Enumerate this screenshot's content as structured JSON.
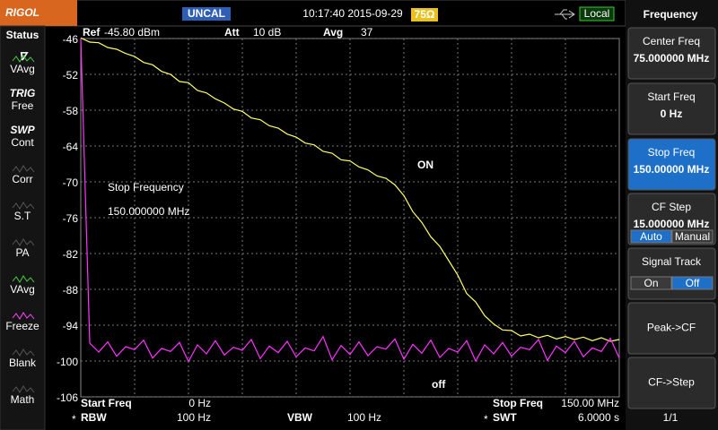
{
  "header": {
    "logo": "RIGOL",
    "uncal": "UNCAL",
    "datetime": "10:17:40 2015-09-29",
    "impedance": "75Ω",
    "remote": "Local"
  },
  "status": {
    "title": "Status",
    "items": [
      {
        "top": "∇",
        "label": "VAvg"
      },
      {
        "top": "TRIG",
        "label": "Free"
      },
      {
        "top": "SWP",
        "label": "Cont"
      },
      {
        "label": "Corr"
      },
      {
        "label": "S.T"
      },
      {
        "label": "PA"
      },
      {
        "label": "VAvg"
      },
      {
        "label": "Freeze"
      },
      {
        "label": "Blank"
      },
      {
        "label": "Math"
      }
    ]
  },
  "menu": {
    "title": "Frequency",
    "buttons": [
      {
        "label": "Center Freq",
        "value": "75.000000 MHz"
      },
      {
        "label": "Start Freq",
        "value": "0 Hz"
      },
      {
        "label": "Stop Freq",
        "value": "150.00000 MHz",
        "active": true
      },
      {
        "label": "CF Step",
        "value": "15.000000 MHz",
        "options": [
          "Auto",
          "Manual"
        ],
        "selected": 0
      },
      {
        "label": "Signal Track",
        "options": [
          "On",
          "Off"
        ],
        "selected": 1
      },
      {
        "label": "Peak->CF"
      },
      {
        "label": "CF->Step"
      }
    ],
    "page": "1/1"
  },
  "chart_data": {
    "type": "line",
    "info": [
      {
        "label": "Ref",
        "value": "-45.80 dBm"
      },
      {
        "label": "Att",
        "value": "10 dB"
      },
      {
        "label": "Avg",
        "value": "37"
      }
    ],
    "footer": [
      {
        "label": "Start Freq",
        "value": "0 Hz"
      },
      {
        "label": "Stop Freq",
        "value": "150.00 MHz"
      },
      {
        "mark": "*",
        "label": "RBW",
        "value": "100 Hz"
      },
      {
        "label": "VBW",
        "value": "100 Hz"
      },
      {
        "mark": "*",
        "label": "SWT",
        "value": "6.0000 s"
      }
    ],
    "annotation": [
      "Stop Frequency",
      "150.000000 MHz"
    ],
    "xlim": [
      0,
      150
    ],
    "ylim": [
      -106,
      -46
    ],
    "yticks": [
      -46,
      -52,
      -58,
      -64,
      -70,
      -76,
      -82,
      -88,
      -94,
      -100,
      -106
    ],
    "grid": true,
    "x": [
      0,
      2.5,
      5,
      7.5,
      10,
      12.5,
      15,
      17.5,
      20,
      22.5,
      25,
      27.5,
      30,
      32.5,
      35,
      37.5,
      40,
      42.5,
      45,
      47.5,
      50,
      52.5,
      55,
      57.5,
      60,
      62.5,
      65,
      67.5,
      70,
      72.5,
      75,
      77.5,
      80,
      82.5,
      85,
      87.5,
      90,
      92.5,
      95,
      97.5,
      100,
      102.5,
      105,
      107.5,
      110,
      112.5,
      115,
      117.5,
      120,
      122.5,
      125,
      127.5,
      130,
      132.5,
      135,
      137.5,
      140,
      142.5,
      145,
      147.5,
      150
    ],
    "series": [
      {
        "name": "ON",
        "color": "#ffff66",
        "values": [
          -45.9,
          -46.6,
          -46.7,
          -47.5,
          -47.8,
          -48.5,
          -49,
          -50,
          -50.4,
          -51.5,
          -52,
          -53.2,
          -53.4,
          -54.7,
          -55.1,
          -56.1,
          -56.8,
          -57.8,
          -58.2,
          -59.3,
          -59.6,
          -60.6,
          -61,
          -62,
          -62.5,
          -63.5,
          -63.8,
          -64.9,
          -65.2,
          -66.3,
          -66.5,
          -67.5,
          -68,
          -69,
          -69.4,
          -70.5,
          -72.3,
          -75,
          -76.8,
          -79.2,
          -80.8,
          -83.2,
          -85.6,
          -88.7,
          -90.1,
          -92.4,
          -93.8,
          -94.8,
          -94.9,
          -95.8,
          -95.5,
          -96.1,
          -95.7,
          -96.3,
          -95.9,
          -96.4,
          -96,
          -96.6,
          -96.1,
          -96.7,
          -96.4
        ]
      },
      {
        "name": "off",
        "color": "#ff33ff",
        "values": [
          -46,
          -97,
          -98.5,
          -96.8,
          -99.2,
          -97.6,
          -98.1,
          -96.5,
          -99.5,
          -97.9,
          -98.4,
          -96.9,
          -100.1,
          -97.3,
          -98.8,
          -96.6,
          -99,
          -97.7,
          -98.2,
          -96.4,
          -99.6,
          -97.5,
          -98.6,
          -96.7,
          -99.3,
          -97.8,
          -98.3,
          -95.9,
          -99.8,
          -97.4,
          -98.9,
          -96.8,
          -99.1,
          -97.6,
          -98,
          -96.3,
          -99.7,
          -97.2,
          -98.7,
          -96.5,
          -99.4,
          -97.9,
          -98.5,
          -96.6,
          -100,
          -97.3,
          -98.8,
          -96.9,
          -99.2,
          -97.7,
          -98.1,
          -96.4,
          -99.9,
          -97.5,
          -98.6,
          -96.7,
          -99.3,
          -97.8,
          -98.4,
          -96.2,
          -99.5
        ]
      }
    ]
  }
}
